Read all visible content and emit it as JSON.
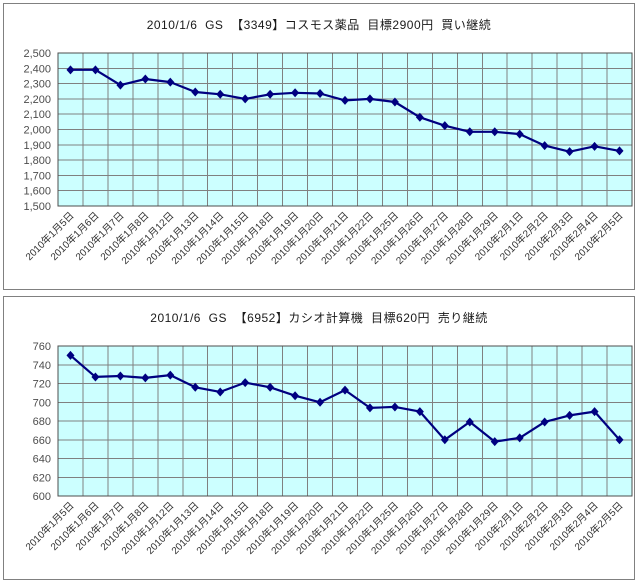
{
  "colors": {
    "plot_bg": "#ccffff",
    "grid": "#808080",
    "plot_border": "#4d4d4d",
    "line": "#000080",
    "marker": "#000080",
    "y_tick_text": "#4d4d4d",
    "x_tick_text": "#333333",
    "title_text": "#1a1a1a",
    "panel_border": "#808080",
    "background": "#ffffff"
  },
  "chart_data": [
    {
      "type": "line",
      "title": "2010/1/6  GS  【3349】コスモス薬品  目標2900円  買い継続",
      "xlabel": "",
      "ylabel": "",
      "ylim": [
        1500,
        2500
      ],
      "ytick": 100,
      "grid": true,
      "legend": "none",
      "marker": "diamond",
      "categories": [
        "2010年1月5日",
        "2010年1月6日",
        "2010年1月7日",
        "2010年1月8日",
        "2010年1月12日",
        "2010年1月13日",
        "2010年1月14日",
        "2010年1月15日",
        "2010年1月18日",
        "2010年1月19日",
        "2010年1月20日",
        "2010年1月21日",
        "2010年1月22日",
        "2010年1月25日",
        "2010年1月26日",
        "2010年1月27日",
        "2010年1月28日",
        "2010年1月29日",
        "2010年2月1日",
        "2010年2月2日",
        "2010年2月3日",
        "2010年2月4日",
        "2010年2月5日"
      ],
      "values": [
        2390,
        2390,
        2290,
        2330,
        2310,
        2245,
        2230,
        2200,
        2230,
        2240,
        2235,
        2190,
        2200,
        2180,
        2080,
        2025,
        1985,
        1985,
        1970,
        1895,
        1855,
        1890,
        1860
      ]
    },
    {
      "type": "line",
      "title": "2010/1/6  GS  【6952】カシオ計算機  目標620円  売り継続",
      "xlabel": "",
      "ylabel": "",
      "ylim": [
        600,
        760
      ],
      "ytick": 20,
      "grid": true,
      "legend": "none",
      "marker": "diamond",
      "categories": [
        "2010年1月5日",
        "2010年1月6日",
        "2010年1月7日",
        "2010年1月8日",
        "2010年1月12日",
        "2010年1月13日",
        "2010年1月14日",
        "2010年1月15日",
        "2010年1月18日",
        "2010年1月19日",
        "2010年1月20日",
        "2010年1月21日",
        "2010年1月22日",
        "2010年1月25日",
        "2010年1月26日",
        "2010年1月27日",
        "2010年1月28日",
        "2010年1月29日",
        "2010年2月1日",
        "2010年2月2日",
        "2010年2月3日",
        "2010年2月4日",
        "2010年2月5日"
      ],
      "values": [
        750,
        727,
        728,
        726,
        729,
        716,
        711,
        721,
        716,
        707,
        700,
        713,
        694,
        695,
        690,
        660,
        679,
        658,
        662,
        679,
        686,
        690,
        660
      ]
    }
  ]
}
